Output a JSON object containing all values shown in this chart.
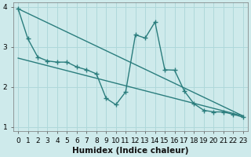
{
  "background_color": "#ceeaeb",
  "grid_color": "#afd8da",
  "line_color": "#2a7d7d",
  "marker": "+",
  "marker_size": 5,
  "line_width": 1.0,
  "xlabel": "Humidex (Indice chaleur)",
  "xlabel_fontsize": 7.5,
  "tick_fontsize": 6.5,
  "xlim": [
    -0.5,
    23.5
  ],
  "ylim": [
    0.9,
    4.1
  ],
  "yticks": [
    1,
    2,
    3,
    4
  ],
  "xticks": [
    0,
    1,
    2,
    3,
    4,
    5,
    6,
    7,
    8,
    9,
    10,
    11,
    12,
    13,
    14,
    15,
    16,
    17,
    18,
    19,
    20,
    21,
    22,
    23
  ],
  "series": [
    [
      0,
      3.95
    ],
    [
      1,
      3.2
    ],
    [
      2,
      2.75
    ],
    [
      3,
      2.65
    ],
    [
      4,
      2.62
    ],
    [
      5,
      2.62
    ],
    [
      6,
      2.5
    ],
    [
      7,
      2.43
    ],
    [
      8,
      2.33
    ],
    [
      9,
      1.72
    ],
    [
      10,
      1.56
    ],
    [
      11,
      1.88
    ],
    [
      12,
      3.3
    ],
    [
      13,
      3.22
    ],
    [
      14,
      3.62
    ],
    [
      15,
      2.43
    ],
    [
      16,
      2.42
    ],
    [
      17,
      1.9
    ],
    [
      18,
      1.58
    ],
    [
      19,
      1.42
    ],
    [
      20,
      1.38
    ],
    [
      21,
      1.38
    ],
    [
      22,
      1.32
    ],
    [
      23,
      1.25
    ]
  ],
  "linear1": [
    [
      0,
      3.95
    ],
    [
      23,
      1.28
    ]
  ],
  "linear2": [
    [
      0,
      2.72
    ],
    [
      23,
      1.28
    ]
  ]
}
